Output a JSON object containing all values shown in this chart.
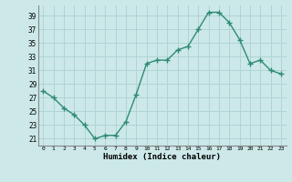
{
  "x": [
    0,
    1,
    2,
    3,
    4,
    5,
    6,
    7,
    8,
    9,
    10,
    11,
    12,
    13,
    14,
    15,
    16,
    17,
    18,
    19,
    20,
    21,
    22,
    23
  ],
  "y": [
    28,
    27,
    25.5,
    24.5,
    23,
    21,
    21.5,
    21.5,
    23.5,
    27.5,
    32,
    32.5,
    32.5,
    34,
    34.5,
    37,
    39.5,
    39.5,
    38,
    35.5,
    32,
    32.5,
    31,
    30.5
  ],
  "xlabel": "Humidex (Indice chaleur)",
  "ylabel_ticks": [
    21,
    23,
    25,
    27,
    29,
    31,
    33,
    35,
    37,
    39
  ],
  "xlim": [
    -0.5,
    23.5
  ],
  "ylim": [
    20,
    40.5
  ],
  "line_color": "#2e8b74",
  "bg_color": "#cce8e8",
  "grid_color": "#b0d4d4",
  "marker": "+",
  "marker_size": 4,
  "linewidth": 1.0
}
